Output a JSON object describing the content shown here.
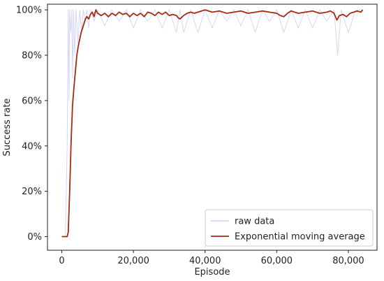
{
  "chart_data": {
    "type": "line",
    "xlabel": "Episode",
    "ylabel": "Success rate",
    "xlim": [
      -4000,
      88000
    ],
    "ylim": [
      -0.06,
      1.025
    ],
    "xticks": [
      0,
      20000,
      40000,
      60000,
      80000
    ],
    "xtick_labels": [
      "0",
      "20,000",
      "40,000",
      "60,000",
      "80,000"
    ],
    "yticks": [
      0,
      0.2,
      0.4,
      0.6,
      0.8,
      1.0
    ],
    "ytick_labels": [
      "0%",
      "20%",
      "40%",
      "60%",
      "80%",
      "100%"
    ],
    "grid": false,
    "legend": {
      "position": "lower-right",
      "entries": [
        "raw data",
        "Exponential moving average"
      ]
    },
    "series": [
      {
        "name": "raw data",
        "color": "#c8c8f5",
        "style": "line-thin-translucent",
        "x": [
          0,
          1000,
          1500,
          1800,
          2000,
          2200,
          2500,
          2800,
          3000,
          3300,
          3600,
          4000,
          4500,
          5000,
          5500,
          6000,
          6500,
          7000,
          7500,
          8000,
          9000,
          10000,
          12000,
          14000,
          16000,
          18000,
          20000,
          22000,
          24000,
          26000,
          28000,
          30000,
          32000,
          33000,
          34000,
          36000,
          38000,
          40000,
          42000,
          44000,
          46000,
          48000,
          50000,
          52000,
          54000,
          56000,
          58000,
          60000,
          62000,
          64000,
          66000,
          68000,
          70000,
          72000,
          74000,
          76000,
          77000,
          78000,
          80000,
          82000,
          84000
        ],
        "y": [
          0,
          0,
          0.4,
          1.0,
          0.6,
          1.0,
          0.9,
          1.0,
          0.7,
          1.0,
          0.8,
          1.0,
          0.85,
          1.0,
          0.9,
          1.0,
          0.95,
          1.0,
          0.92,
          1.0,
          0.95,
          1.0,
          0.93,
          1.0,
          0.95,
          1.0,
          0.92,
          1.0,
          0.95,
          1.0,
          0.92,
          1.0,
          0.9,
          1.0,
          0.9,
          1.0,
          0.9,
          1.0,
          0.92,
          1.0,
          0.95,
          1.0,
          0.93,
          1.0,
          0.9,
          1.0,
          0.95,
          1.0,
          0.9,
          1.0,
          0.92,
          1.0,
          0.92,
          1.0,
          0.95,
          1.0,
          0.8,
          1.0,
          0.9,
          1.0,
          1.0
        ]
      },
      {
        "name": "Exponential moving average",
        "color": "#a82a10",
        "style": "line",
        "x": [
          0,
          800,
          1500,
          1800,
          2200,
          2600,
          3000,
          3400,
          3800,
          4200,
          4600,
          5000,
          5400,
          5800,
          6200,
          6600,
          7000,
          7500,
          8000,
          8500,
          9000,
          9500,
          10000,
          11000,
          12000,
          13000,
          14000,
          15000,
          16000,
          17000,
          18000,
          19000,
          20000,
          21000,
          22000,
          23000,
          24000,
          25000,
          26000,
          27000,
          28000,
          29000,
          30000,
          31000,
          32000,
          32500,
          33000,
          34000,
          35000,
          36000,
          37000,
          38000,
          39000,
          40000,
          42000,
          44000,
          46000,
          48000,
          50000,
          52000,
          54000,
          56000,
          58000,
          60000,
          61000,
          62000,
          63000,
          64000,
          65000,
          66000,
          68000,
          70000,
          72000,
          74000,
          75000,
          76000,
          76800,
          77500,
          78500,
          79500,
          80500,
          81500,
          82500,
          83500,
          84000
        ],
        "y": [
          0,
          0,
          0,
          0.02,
          0.2,
          0.42,
          0.58,
          0.66,
          0.73,
          0.8,
          0.84,
          0.87,
          0.9,
          0.92,
          0.94,
          0.96,
          0.97,
          0.96,
          0.98,
          0.99,
          0.97,
          1.0,
          0.985,
          0.975,
          0.985,
          0.97,
          0.985,
          0.975,
          0.99,
          0.98,
          0.985,
          0.97,
          0.985,
          0.975,
          0.985,
          0.97,
          0.99,
          0.985,
          0.975,
          0.99,
          0.98,
          0.99,
          0.975,
          0.98,
          0.975,
          0.965,
          0.96,
          0.975,
          0.985,
          0.99,
          0.985,
          0.99,
          0.995,
          1.0,
          0.99,
          0.995,
          0.985,
          0.99,
          0.995,
          0.985,
          0.99,
          0.995,
          0.99,
          0.985,
          0.975,
          0.97,
          0.985,
          0.995,
          0.99,
          0.985,
          0.99,
          0.995,
          0.985,
          0.99,
          0.995,
          0.985,
          0.955,
          0.975,
          0.98,
          0.97,
          0.985,
          0.99,
          0.995,
          0.99,
          1.0
        ]
      }
    ]
  }
}
